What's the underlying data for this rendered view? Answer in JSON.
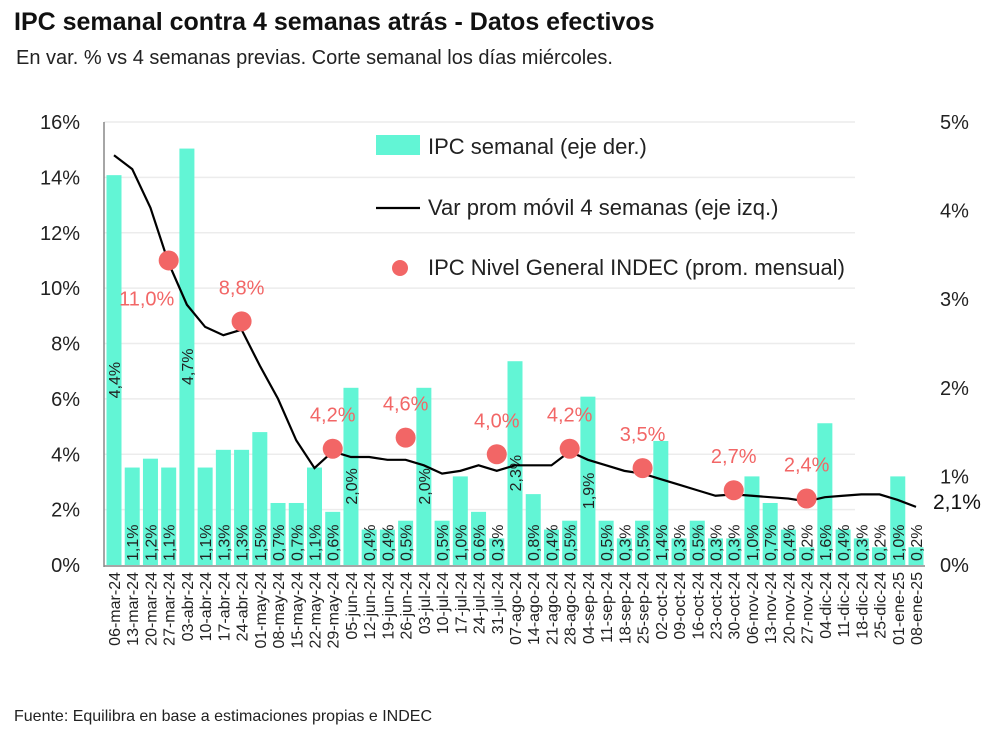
{
  "chart_data": {
    "type": "bar+line",
    "title": "IPC semanal contra 4 semanas atrás - Datos efectivos",
    "subtitle": "En var. % vs 4 semanas previas. Corte semanal los días miércoles.",
    "source": "Fuente: Equilibra en base a estimaciones propias e INDEC",
    "categories": [
      "06-mar-24",
      "13-mar-24",
      "20-mar-24",
      "27-mar-24",
      "03-abr-24",
      "10-abr-24",
      "17-abr-24",
      "24-abr-24",
      "01-may-24",
      "08-may-24",
      "15-may-24",
      "22-may-24",
      "29-may-24",
      "05-jun-24",
      "12-jun-24",
      "19-jun-24",
      "26-jun-24",
      "03-jul-24",
      "10-jul-24",
      "17-jul-24",
      "24-jul-24",
      "31-jul-24",
      "07-ago-24",
      "14-ago-24",
      "21-ago-24",
      "28-ago-24",
      "04-sep-24",
      "11-sep-24",
      "18-sep-24",
      "25-sep-24",
      "02-oct-24",
      "09-oct-24",
      "16-oct-24",
      "23-oct-24",
      "30-oct-24",
      "06-nov-24",
      "13-nov-24",
      "20-nov-24",
      "27-nov-24",
      "04-dic-24",
      "11-dic-24",
      "18-dic-24",
      "25-dic-24",
      "01-ene-25",
      "08-ene-25"
    ],
    "left_axis": {
      "ticks": [
        "0%",
        "2%",
        "4%",
        "6%",
        "8%",
        "10%",
        "12%",
        "14%",
        "16%"
      ],
      "ylim": [
        0,
        16
      ]
    },
    "right_axis": {
      "ticks": [
        "0%",
        "1%",
        "2%",
        "3%",
        "4%",
        "5%"
      ],
      "ylim": [
        0,
        5
      ]
    },
    "legend": {
      "bars": "IPC semanal (eje der.)",
      "line": "Var prom móvil 4 semanas (eje izq.)",
      "dots": "IPC Nivel General INDEC (prom. mensual)",
      "placement": "top-right"
    },
    "series": [
      {
        "name": "IPC semanal (eje der.)",
        "axis": "right",
        "color": "#62f5d5",
        "values": [
          4.4,
          1.1,
          1.2,
          1.1,
          4.7,
          1.1,
          1.3,
          1.3,
          1.5,
          0.7,
          0.7,
          1.1,
          0.6,
          2.0,
          0.4,
          0.4,
          0.5,
          2.0,
          0.5,
          1.0,
          0.6,
          0.3,
          2.3,
          0.8,
          0.4,
          0.5,
          1.9,
          0.5,
          0.3,
          0.5,
          1.4,
          0.3,
          0.5,
          0.3,
          0.3,
          1.0,
          0.7,
          0.4,
          0.2,
          1.6,
          0.4,
          0.3,
          0.2,
          1.0,
          0.2
        ],
        "labels": [
          "4,4%",
          "1,1%",
          "1,2%",
          "1,1%",
          "4,7%",
          "1,1%",
          "1,3%",
          "1,3%",
          "1,5%",
          "0,7%",
          "0,7%",
          "1,1%",
          "0,6%",
          "2,0%",
          "0,4%",
          "0,4%",
          "0,5%",
          "2,0%",
          "0,5%",
          "1,0%",
          "0,6%",
          "0,3%",
          "2,3%",
          "0,8%",
          "0,4%",
          "0,5%",
          "1,9%",
          "0,5%",
          "0,3%",
          "0,5%",
          "1,4%",
          "0,3%",
          "0,5%",
          "0,3%",
          "0,3%",
          "1,0%",
          "0,7%",
          "0,4%",
          "0,2%",
          "1,6%",
          "0,4%",
          "0,3%",
          "0,2%",
          "1,0%",
          "0,2%"
        ]
      },
      {
        "name": "Var prom móvil 4 semanas (eje izq.)",
        "axis": "left",
        "color": "#000000",
        "values": [
          14.8,
          14.3,
          12.9,
          10.9,
          9.4,
          8.6,
          8.3,
          8.5,
          7.2,
          6.0,
          4.5,
          3.5,
          4.1,
          3.9,
          3.9,
          3.8,
          3.8,
          3.6,
          3.3,
          3.4,
          3.6,
          3.4,
          3.6,
          3.6,
          3.6,
          4.1,
          3.8,
          3.6,
          3.4,
          3.3,
          3.1,
          2.9,
          2.7,
          2.5,
          2.55,
          2.5,
          2.45,
          2.4,
          2.3,
          2.45,
          2.5,
          2.55,
          2.55,
          2.35,
          2.1
        ],
        "end_label": "2,1%"
      },
      {
        "name": "IPC Nivel General INDEC (prom. mensual)",
        "axis": "left",
        "color": "#f26666",
        "points": [
          {
            "x": "27-mar-24",
            "y": 11.0,
            "label": "11,0%"
          },
          {
            "x": "24-abr-24",
            "y": 8.8,
            "label": "8,8%"
          },
          {
            "x": "29-may-24",
            "y": 4.2,
            "label": "4,2%"
          },
          {
            "x": "26-jun-24",
            "y": 4.6,
            "label": "4,6%"
          },
          {
            "x": "31-jul-24",
            "y": 4.0,
            "label": "4,0%"
          },
          {
            "x": "28-ago-24",
            "y": 4.2,
            "label": "4,2%"
          },
          {
            "x": "25-sep-24",
            "y": 3.5,
            "label": "3,5%"
          },
          {
            "x": "30-oct-24",
            "y": 2.7,
            "label": "2,7%"
          },
          {
            "x": "27-nov-24",
            "y": 2.4,
            "label": "2,4%"
          }
        ]
      }
    ]
  }
}
